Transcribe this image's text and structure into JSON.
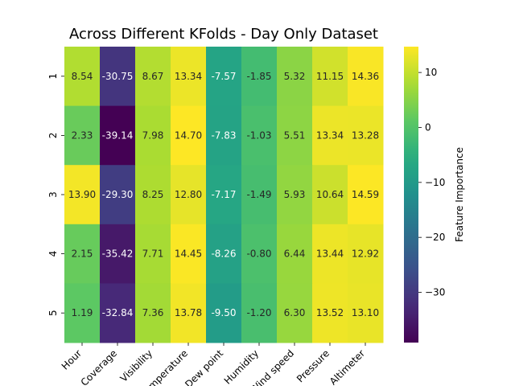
{
  "chart_data": {
    "type": "heatmap",
    "title": "Across Different KFolds - Day Only Dataset",
    "x_categories": [
      "Hour",
      "Coverage",
      "Visibility",
      "Temperature",
      "Dew point",
      "Humidity",
      "Wind speed",
      "Pressure",
      "Altimeter"
    ],
    "y_categories": [
      "1",
      "2",
      "3",
      "4",
      "5"
    ],
    "values": [
      [
        8.54,
        -30.75,
        8.67,
        13.34,
        -7.57,
        -1.85,
        5.32,
        11.15,
        14.36
      ],
      [
        2.33,
        -39.14,
        7.98,
        14.7,
        -7.83,
        -1.03,
        5.51,
        13.34,
        13.28
      ],
      [
        13.9,
        -29.3,
        8.25,
        12.8,
        -7.17,
        -1.49,
        5.93,
        10.64,
        14.59
      ],
      [
        2.15,
        -35.42,
        7.71,
        14.45,
        -8.26,
        -0.8,
        6.44,
        13.44,
        12.92
      ],
      [
        1.19,
        -32.84,
        7.36,
        13.78,
        -9.5,
        -1.2,
        6.3,
        13.52,
        13.1
      ]
    ],
    "colormap": "viridis",
    "vmin": -39.14,
    "vmax": 14.7,
    "colorbar": {
      "label": "Feature Importance",
      "ticks": [
        10,
        0,
        -10,
        -20,
        -30
      ]
    }
  }
}
